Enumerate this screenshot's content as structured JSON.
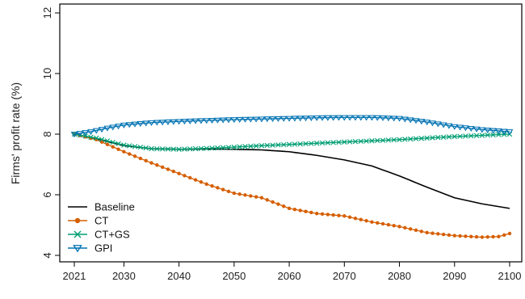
{
  "chart_data": {
    "type": "line",
    "ylabel": "Firms' profit rate (%)",
    "xlabel": "",
    "xlim": [
      2021,
      2100
    ],
    "ylim": [
      4,
      12
    ],
    "x_ticks": [
      "2021",
      "2030",
      "2040",
      "2050",
      "2060",
      "2070",
      "2080",
      "2090",
      "2100"
    ],
    "y_ticks": [
      "4",
      "6",
      "8",
      "10",
      "12"
    ],
    "grid": false,
    "legend_position": "bottom-left",
    "series": [
      {
        "name": "Baseline",
        "color": "#000000",
        "marker": "none",
        "points": [
          [
            2021,
            8.0
          ],
          [
            2025,
            7.85
          ],
          [
            2030,
            7.62
          ],
          [
            2035,
            7.52
          ],
          [
            2040,
            7.5
          ],
          [
            2045,
            7.51
          ],
          [
            2050,
            7.5
          ],
          [
            2055,
            7.48
          ],
          [
            2060,
            7.42
          ],
          [
            2065,
            7.3
          ],
          [
            2070,
            7.15
          ],
          [
            2075,
            6.95
          ],
          [
            2080,
            6.62
          ],
          [
            2085,
            6.25
          ],
          [
            2090,
            5.9
          ],
          [
            2095,
            5.7
          ],
          [
            2100,
            5.55
          ]
        ]
      },
      {
        "name": "CT",
        "color": "#D55E00",
        "marker": "circle",
        "points": [
          [
            2021,
            8.0
          ],
          [
            2025,
            7.82
          ],
          [
            2030,
            7.42
          ],
          [
            2035,
            7.05
          ],
          [
            2040,
            6.7
          ],
          [
            2045,
            6.35
          ],
          [
            2050,
            6.05
          ],
          [
            2055,
            5.9
          ],
          [
            2060,
            5.55
          ],
          [
            2065,
            5.38
          ],
          [
            2070,
            5.3
          ],
          [
            2075,
            5.1
          ],
          [
            2080,
            4.95
          ],
          [
            2085,
            4.75
          ],
          [
            2090,
            4.65
          ],
          [
            2095,
            4.6
          ],
          [
            2098,
            4.62
          ],
          [
            2100,
            4.72
          ]
        ]
      },
      {
        "name": "CT+GS",
        "color": "#009E73",
        "marker": "cross",
        "points": [
          [
            2021,
            8.0
          ],
          [
            2025,
            7.87
          ],
          [
            2030,
            7.64
          ],
          [
            2035,
            7.52
          ],
          [
            2040,
            7.5
          ],
          [
            2045,
            7.53
          ],
          [
            2050,
            7.57
          ],
          [
            2055,
            7.62
          ],
          [
            2060,
            7.66
          ],
          [
            2065,
            7.7
          ],
          [
            2070,
            7.74
          ],
          [
            2075,
            7.78
          ],
          [
            2080,
            7.82
          ],
          [
            2085,
            7.87
          ],
          [
            2090,
            7.92
          ],
          [
            2095,
            7.96
          ],
          [
            2100,
            8.0
          ]
        ]
      },
      {
        "name": "GPI",
        "color": "#0072B2",
        "marker": "triangle-down",
        "points": [
          [
            2021,
            8.0
          ],
          [
            2024,
            8.08
          ],
          [
            2027,
            8.2
          ],
          [
            2030,
            8.3
          ],
          [
            2035,
            8.38
          ],
          [
            2040,
            8.42
          ],
          [
            2045,
            8.45
          ],
          [
            2050,
            8.48
          ],
          [
            2055,
            8.5
          ],
          [
            2060,
            8.52
          ],
          [
            2065,
            8.54
          ],
          [
            2070,
            8.55
          ],
          [
            2075,
            8.55
          ],
          [
            2080,
            8.52
          ],
          [
            2085,
            8.4
          ],
          [
            2090,
            8.25
          ],
          [
            2095,
            8.15
          ],
          [
            2100,
            8.08
          ]
        ]
      }
    ]
  }
}
